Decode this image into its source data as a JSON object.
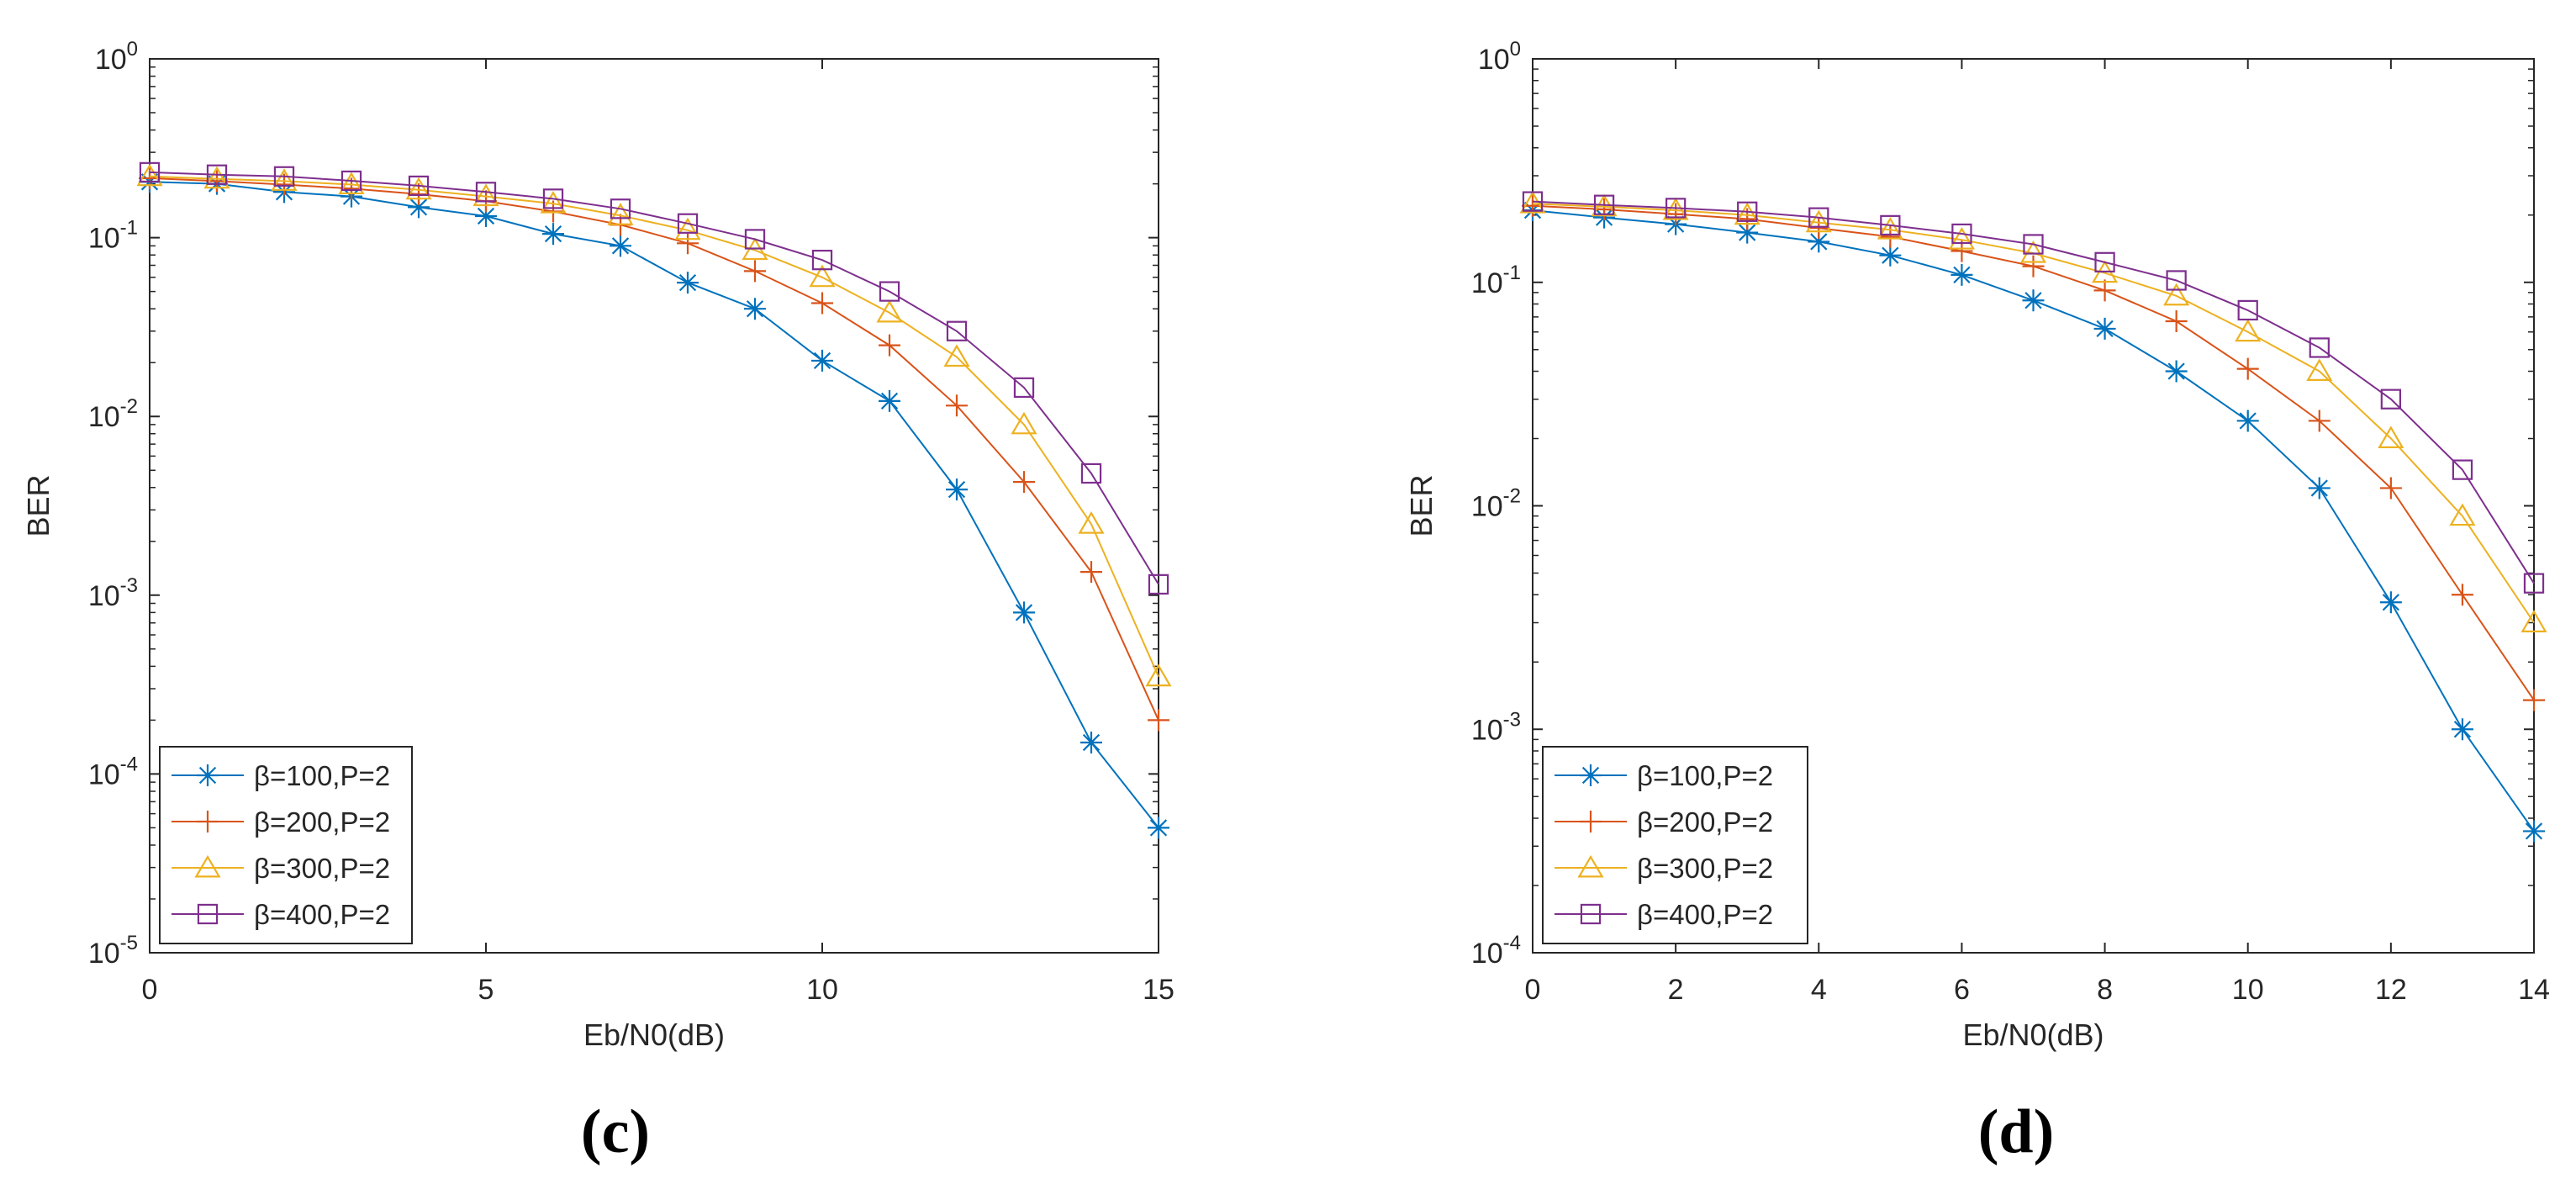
{
  "colors": {
    "series": [
      "#0072BD",
      "#D95319",
      "#EDB120",
      "#7E2F8E"
    ],
    "axis": "#262626",
    "background": "#ffffff"
  },
  "chart_data": [
    {
      "panel": "c",
      "caption": "(c)",
      "type": "line",
      "title": "",
      "xlabel": "Eb/N0(dB)",
      "ylabel": "BER",
      "yscale": "log",
      "xlim": [
        0,
        15
      ],
      "ylim": [
        1e-05,
        1
      ],
      "xticks": [
        0,
        5,
        10,
        15
      ],
      "xtick_labels": [
        "0",
        "5",
        "10",
        "15"
      ],
      "yticks": [
        1e-05,
        0.0001,
        0.001,
        0.01,
        0.1,
        1
      ],
      "ytick_bases": [
        "10",
        "10",
        "10",
        "10",
        "10",
        "10"
      ],
      "ytick_exponents": [
        "-5",
        "-4",
        "-3",
        "-2",
        "-1",
        "0"
      ],
      "grid": false,
      "legend_position": "bottom-left",
      "x": [
        0,
        1,
        2,
        3,
        4,
        5,
        6,
        7,
        8,
        9,
        10,
        11,
        12,
        13,
        14,
        15
      ],
      "series": [
        {
          "name": "β=100,P=2",
          "marker": "asterisk",
          "values": [
            0.205,
            0.2,
            0.18,
            0.17,
            0.148,
            0.132,
            0.105,
            0.09,
            0.056,
            0.04,
            0.0205,
            0.0122,
            0.0039,
            0.0008,
            0.00015,
            5e-05
          ]
        },
        {
          "name": "β=200,P=2",
          "marker": "plus",
          "values": [
            0.215,
            0.207,
            0.198,
            0.188,
            0.175,
            0.16,
            0.14,
            0.118,
            0.093,
            0.065,
            0.043,
            0.025,
            0.0115,
            0.0043,
            0.00135,
            0.0002
          ]
        },
        {
          "name": "β=300,P=2",
          "marker": "triangle",
          "values": [
            0.22,
            0.213,
            0.207,
            0.198,
            0.185,
            0.17,
            0.155,
            0.133,
            0.11,
            0.085,
            0.06,
            0.038,
            0.0215,
            0.009,
            0.0025,
            0.00035
          ]
        },
        {
          "name": "β=400,P=2",
          "marker": "square",
          "values": [
            0.232,
            0.225,
            0.22,
            0.208,
            0.195,
            0.18,
            0.165,
            0.145,
            0.12,
            0.098,
            0.075,
            0.05,
            0.03,
            0.0145,
            0.0048,
            0.00115
          ]
        }
      ]
    },
    {
      "panel": "d",
      "caption": "(d)",
      "type": "line",
      "title": "",
      "xlabel": "Eb/N0(dB)",
      "ylabel": "BER",
      "yscale": "log",
      "xlim": [
        0,
        14
      ],
      "ylim": [
        0.0001,
        1
      ],
      "xticks": [
        0,
        2,
        4,
        6,
        8,
        10,
        12,
        14
      ],
      "xtick_labels": [
        "0",
        "2",
        "4",
        "6",
        "8",
        "10",
        "12",
        "14"
      ],
      "yticks": [
        0.0001,
        0.001,
        0.01,
        0.1,
        1
      ],
      "ytick_bases": [
        "10",
        "10",
        "10",
        "10",
        "10"
      ],
      "ytick_exponents": [
        "-4",
        "-3",
        "-2",
        "-1",
        "0"
      ],
      "grid": false,
      "legend_position": "bottom-left",
      "x": [
        0,
        1,
        2,
        3,
        4,
        5,
        6,
        7,
        8,
        9,
        10,
        11,
        12,
        13,
        14
      ],
      "series": [
        {
          "name": "β=100,P=2",
          "marker": "asterisk",
          "values": [
            0.21,
            0.195,
            0.182,
            0.167,
            0.152,
            0.132,
            0.108,
            0.083,
            0.062,
            0.04,
            0.024,
            0.012,
            0.0037,
            0.001,
            0.00035
          ]
        },
        {
          "name": "β=200,P=2",
          "marker": "plus",
          "values": [
            0.22,
            0.212,
            0.202,
            0.192,
            0.175,
            0.16,
            0.138,
            0.118,
            0.092,
            0.067,
            0.041,
            0.024,
            0.012,
            0.004,
            0.00135
          ]
        },
        {
          "name": "β=300,P=2",
          "marker": "triangle",
          "values": [
            0.225,
            0.218,
            0.21,
            0.2,
            0.185,
            0.172,
            0.155,
            0.135,
            0.11,
            0.087,
            0.06,
            0.04,
            0.02,
            0.009,
            0.003
          ]
        },
        {
          "name": "β=400,P=2",
          "marker": "square",
          "values": [
            0.23,
            0.222,
            0.215,
            0.207,
            0.195,
            0.18,
            0.165,
            0.148,
            0.123,
            0.102,
            0.075,
            0.051,
            0.03,
            0.0145,
            0.0045
          ]
        }
      ]
    }
  ]
}
